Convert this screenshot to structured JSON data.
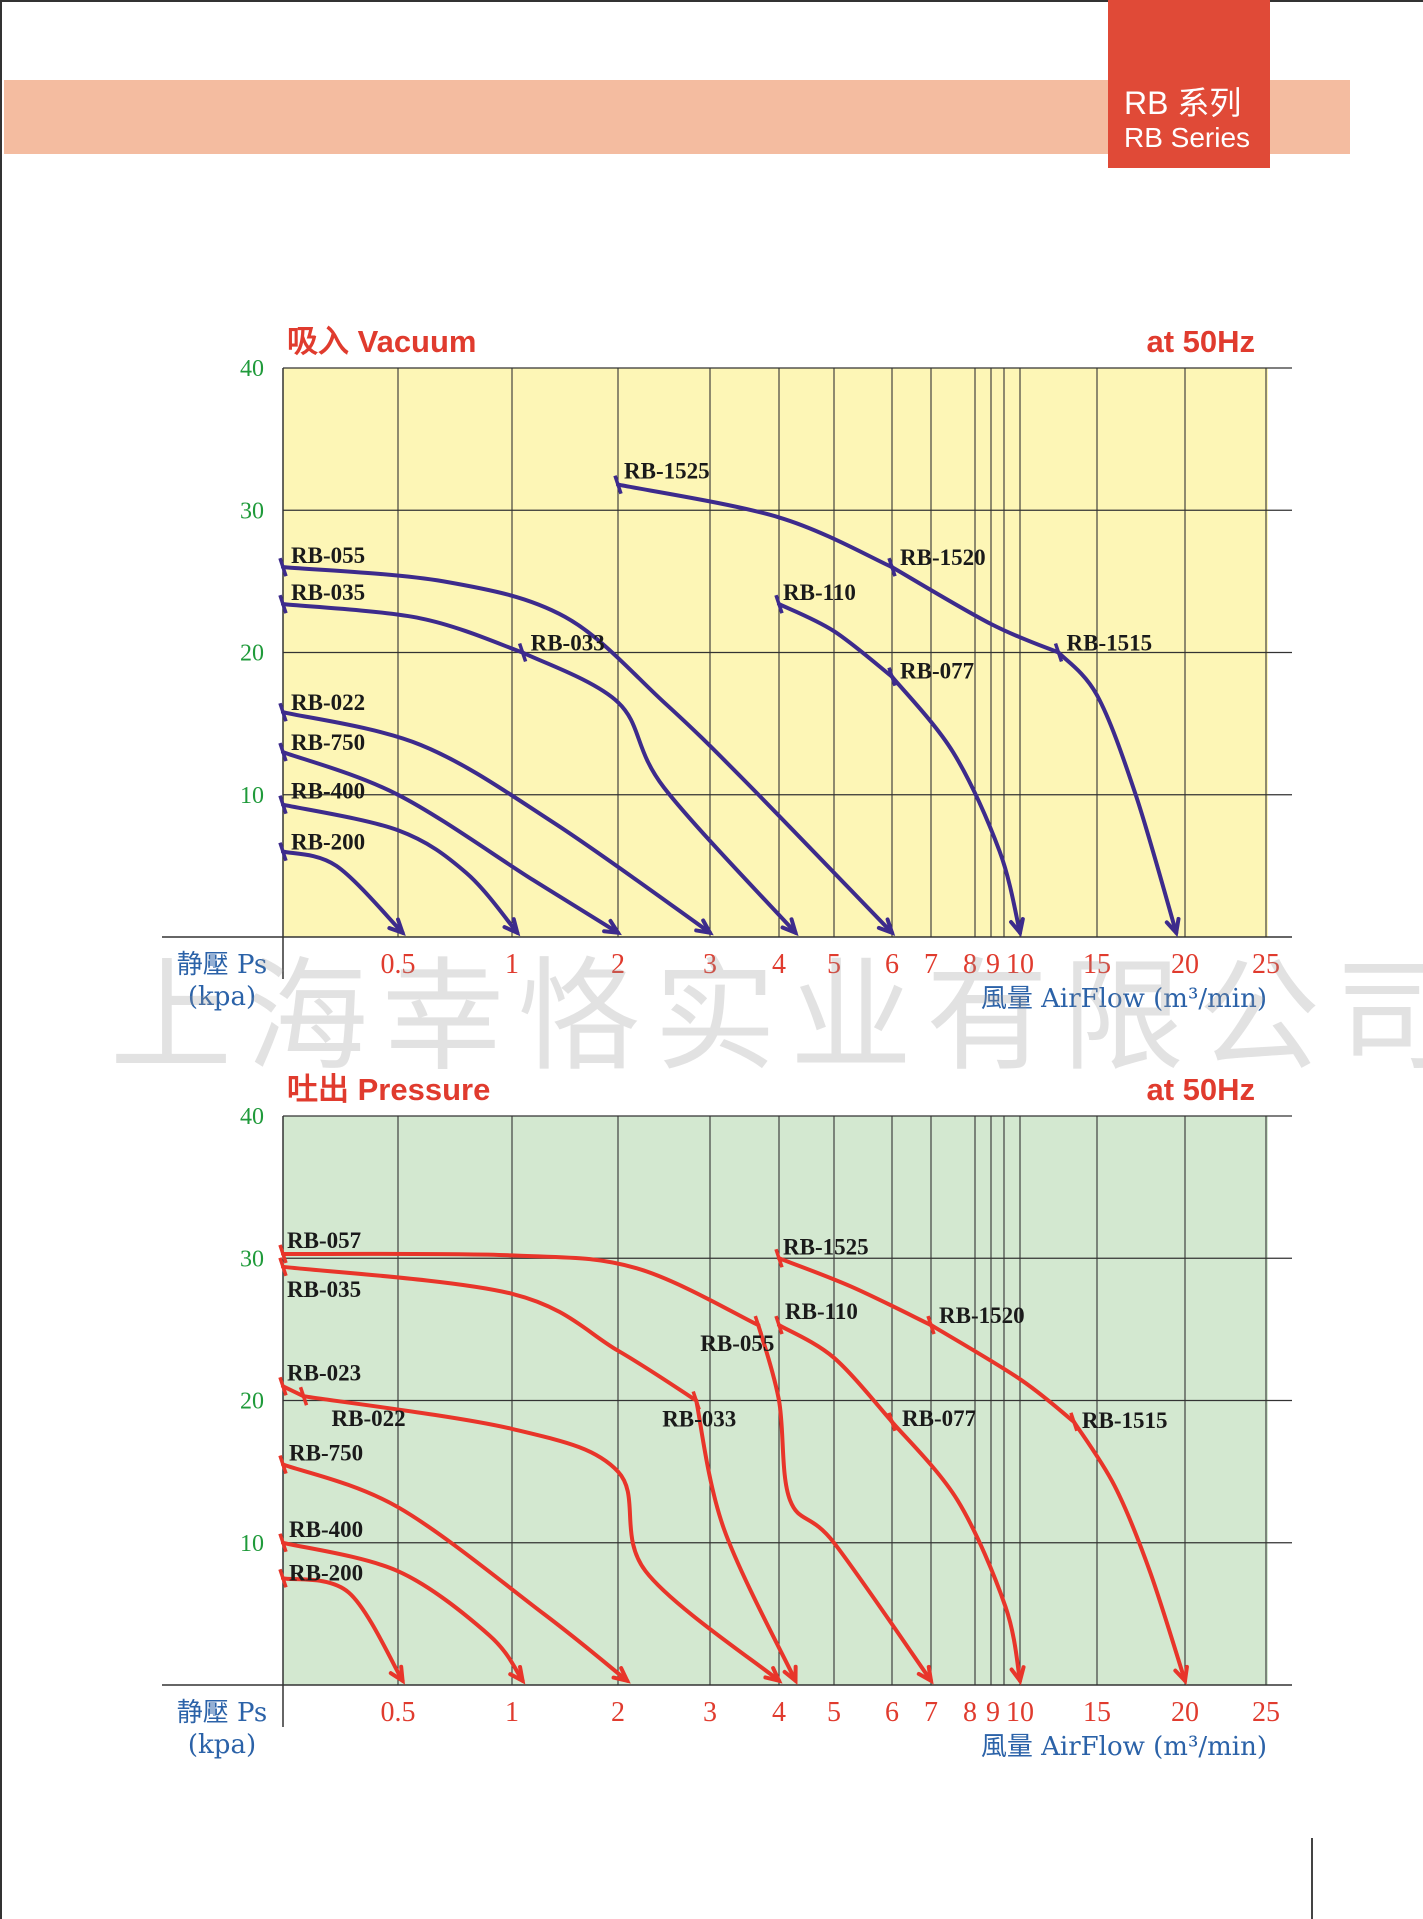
{
  "header": {
    "series_cn": "RB 系列",
    "series_en": "RB Series",
    "band_color": "#f4bca0",
    "badge_color": "#e04a37"
  },
  "watermark": "上海幸恪实业有限公司",
  "colors": {
    "ytick": "#1f9a3a",
    "xtick": "#e03b2e",
    "axis_label": "#2b62a8",
    "title": "#e03b2e"
  },
  "chart_data": [
    {
      "type": "line",
      "title": "吸入 Vacuum",
      "subtitle": "at 50Hz",
      "ylabel": "静壓 Ps",
      "ylabel_unit": "(kpa)",
      "xlabel": "風量 AirFlow (m³/min)",
      "ylim": [
        0,
        40
      ],
      "yticks": [
        "40",
        "30",
        "20",
        "10"
      ],
      "xticks": [
        "0.5",
        "1",
        "2",
        "3",
        "4",
        "5",
        "6",
        "7",
        "8",
        "9",
        "10",
        "15",
        "20",
        "25"
      ],
      "background": "#fdf6b6",
      "curve_color": "#3d2b8c",
      "series": [
        {
          "name": "RB-1525",
          "points": [
            [
              2,
              31.8
            ],
            [
              4,
              29.5
            ],
            [
              6,
              26
            ]
          ]
        },
        {
          "name": "RB-1520",
          "points": [
            [
              6,
              26
            ],
            [
              9,
              22
            ],
            [
              12.5,
              20
            ]
          ]
        },
        {
          "name": "RB-1515",
          "points": [
            [
              12.5,
              20
            ],
            [
              15,
              17
            ],
            [
              17.2,
              10
            ],
            [
              19.5,
              0.3
            ]
          ]
        },
        {
          "name": "RB-110",
          "points": [
            [
              4,
              23.4
            ],
            [
              5,
              21.5
            ],
            [
              6,
              18.3
            ]
          ]
        },
        {
          "name": "RB-077",
          "points": [
            [
              6,
              18.3
            ],
            [
              7.5,
              13
            ],
            [
              9.3,
              6
            ],
            [
              10,
              0.3
            ]
          ]
        },
        {
          "name": "RB-055",
          "points": [
            [
              0.22,
              26
            ],
            [
              0.7,
              25
            ],
            [
              1.5,
              22.5
            ],
            [
              2.5,
              16.5
            ],
            [
              3.5,
              11
            ],
            [
              6,
              0.3
            ]
          ]
        },
        {
          "name": "RB-035",
          "points": [
            [
              0.22,
              23.4
            ],
            [
              0.6,
              22.4
            ],
            [
              1.1,
              20
            ]
          ]
        },
        {
          "name": "RB-033",
          "points": [
            [
              1.1,
              20
            ],
            [
              2,
              16.5
            ],
            [
              2.5,
              10.5
            ],
            [
              4.3,
              0.3
            ]
          ]
        },
        {
          "name": "RB-022",
          "points": [
            [
              0.22,
              15.8
            ],
            [
              0.6,
              13.5
            ],
            [
              1.4,
              8
            ],
            [
              3,
              0.3
            ]
          ]
        },
        {
          "name": "RB-750",
          "points": [
            [
              0.22,
              13
            ],
            [
              0.5,
              10
            ],
            [
              1.2,
              4
            ],
            [
              2,
              0.3
            ]
          ]
        },
        {
          "name": "RB-400",
          "points": [
            [
              0.22,
              9.3
            ],
            [
              0.5,
              7.5
            ],
            [
              0.8,
              4.5
            ],
            [
              1.05,
              0.3
            ]
          ]
        },
        {
          "name": "RB-200",
          "points": [
            [
              0.22,
              6
            ],
            [
              0.35,
              5
            ],
            [
              0.52,
              0.3
            ]
          ]
        }
      ]
    },
    {
      "type": "line",
      "title": "吐出 Pressure",
      "subtitle": "at 50Hz",
      "ylabel": "静壓 Ps",
      "ylabel_unit": "(kpa)",
      "xlabel": "風量 AirFlow (m³/min)",
      "ylim": [
        0,
        40
      ],
      "yticks": [
        "40",
        "30",
        "20",
        "10"
      ],
      "xticks": [
        "0.5",
        "1",
        "2",
        "3",
        "4",
        "5",
        "6",
        "7",
        "8",
        "9",
        "10",
        "15",
        "20",
        "25"
      ],
      "background": "#d3e8d0",
      "curve_color": "#e8352a",
      "series": [
        {
          "name": "RB-1525",
          "points": [
            [
              4,
              30
            ],
            [
              5.3,
              28
            ],
            [
              7,
              25.3
            ]
          ]
        },
        {
          "name": "RB-1520",
          "points": [
            [
              7,
              25.3
            ],
            [
              10,
              21.5
            ],
            [
              13.5,
              18.5
            ]
          ]
        },
        {
          "name": "RB-1515",
          "points": [
            [
              13.5,
              18.5
            ],
            [
              16,
              14
            ],
            [
              18,
              8
            ],
            [
              20,
              0.3
            ]
          ]
        },
        {
          "name": "RB-110",
          "points": [
            [
              4,
              25.3
            ],
            [
              5,
              23
            ],
            [
              6,
              18.5
            ]
          ]
        },
        {
          "name": "RB-077",
          "points": [
            [
              6,
              18.5
            ],
            [
              7.6,
              13
            ],
            [
              9.5,
              5.5
            ],
            [
              10,
              0.3
            ]
          ]
        },
        {
          "name": "RB-057",
          "points": [
            [
              0.22,
              30.3
            ],
            [
              1,
              30.2
            ],
            [
              2.2,
              29.3
            ],
            [
              3.7,
              25.3
            ]
          ]
        },
        {
          "name": "RB-055",
          "points": [
            [
              3.7,
              25.3
            ],
            [
              4,
              20
            ],
            [
              4.2,
              13
            ],
            [
              5,
              10
            ],
            [
              7,
              0.3
            ]
          ]
        },
        {
          "name": "RB-035",
          "points": [
            [
              0.22,
              29.4
            ],
            [
              1,
              27.5
            ],
            [
              2,
              23.5
            ],
            [
              2.85,
              20
            ]
          ]
        },
        {
          "name": "RB-033",
          "points": [
            [
              2.85,
              20
            ],
            [
              3.2,
              11
            ],
            [
              4.3,
              0.3
            ]
          ]
        },
        {
          "name": "RB-023",
          "points": [
            [
              0.22,
              21
            ],
            [
              0.27,
              20.3
            ]
          ]
        },
        {
          "name": "RB-022",
          "points": [
            [
              0.27,
              20.3
            ],
            [
              1,
              18
            ],
            [
              2,
              15
            ],
            [
              2.3,
              8
            ],
            [
              4,
              0.3
            ]
          ]
        },
        {
          "name": "RB-750",
          "points": [
            [
              0.22,
              15.5
            ],
            [
              0.5,
              12.5
            ],
            [
              1.3,
              5
            ],
            [
              2.1,
              0.3
            ]
          ]
        },
        {
          "name": "RB-400",
          "points": [
            [
              0.22,
              10
            ],
            [
              0.5,
              8
            ],
            [
              0.9,
              3.5
            ],
            [
              1.1,
              0.3
            ]
          ]
        },
        {
          "name": "RB-200",
          "points": [
            [
              0.22,
              7.5
            ],
            [
              0.38,
              6.5
            ],
            [
              0.52,
              0.3
            ]
          ]
        }
      ]
    }
  ]
}
